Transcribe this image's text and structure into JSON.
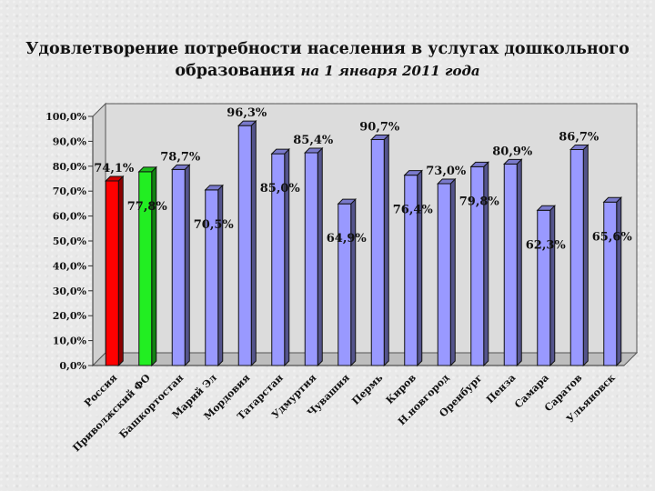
{
  "title_line1": "Удовлетворение потребности населения в услугах дошкольного",
  "title_line2_main": "образования",
  "title_line2_sub": "на 1 января 2011 года",
  "chart_data": {
    "type": "bar",
    "title": "Удовлетворение потребности населения в услугах дошкольного образования на 1 января 2011 года",
    "categories": [
      "Россия",
      "Приволжский ФО",
      "Башкортостан",
      "Марий Эл",
      "Мордовия",
      "Татарстан",
      "Удмуртия",
      "Чувашия",
      "Пермь",
      "Киров",
      "Н.новгород",
      "Оренбург",
      "Пенза",
      "Самара",
      "Саратов",
      "Ульяновск"
    ],
    "values": [
      74.1,
      77.8,
      78.7,
      70.5,
      96.3,
      85.0,
      85.4,
      64.9,
      90.7,
      76.4,
      73.0,
      79.8,
      80.9,
      62.3,
      86.7,
      65.6
    ],
    "data_labels": [
      "74,1%",
      "77,8%",
      "78,7%",
      "70,5%",
      "96,3%",
      "85,0%",
      "85,4%",
      "64,9%",
      "90,7%",
      "76,4%",
      "73,0%",
      "79,8%",
      "80,9%",
      "62,3%",
      "86,7%",
      "65,6%"
    ],
    "bar_colors": [
      "#ff0000",
      "#22ee22",
      "#9999ff",
      "#9999ff",
      "#9999ff",
      "#9999ff",
      "#9999ff",
      "#9999ff",
      "#9999ff",
      "#9999ff",
      "#9999ff",
      "#9999ff",
      "#9999ff",
      "#9999ff",
      "#9999ff",
      "#9999ff"
    ],
    "ylim": [
      0,
      100
    ],
    "yticks": [
      "0,0%",
      "10,0%",
      "20,0%",
      "30,0%",
      "40,0%",
      "50,0%",
      "60,0%",
      "70,0%",
      "80,0%",
      "90,0%",
      "100,0%"
    ],
    "grid": false,
    "legend": "none",
    "style": "3d-column"
  }
}
